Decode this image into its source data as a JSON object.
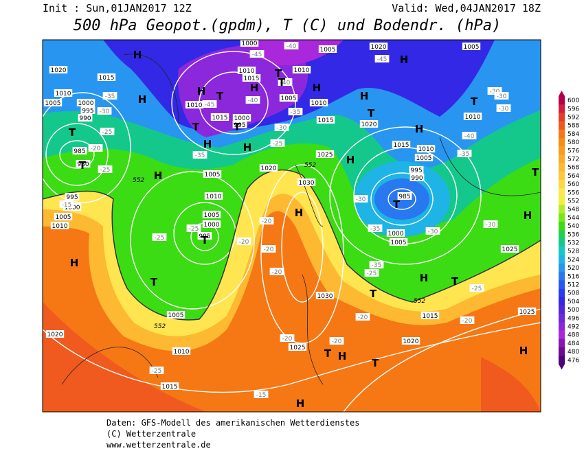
{
  "header": {
    "init": "Init : Sun,01JAN2017 12Z",
    "valid": "Valid: Wed,04JAN2017 18Z",
    "title": "500 hPa Geopot.(gpdm), T (C) und Bodendr. (hPa)"
  },
  "footer": {
    "line1": "Daten: GFS-Modell des amerikanischen Wetterdienstes",
    "line2": "(C) Wetterzentrale",
    "line3": "www.wetterzentrale.de"
  },
  "legend": {
    "values": [
      600,
      596,
      592,
      588,
      584,
      580,
      576,
      572,
      568,
      564,
      560,
      556,
      552,
      548,
      544,
      540,
      536,
      532,
      528,
      524,
      520,
      516,
      512,
      508,
      504,
      500,
      496,
      492,
      488,
      484,
      480,
      476
    ],
    "colors": [
      "#b4004b",
      "#d21e3c",
      "#e63c28",
      "#f05a1e",
      "#f57814",
      "#f88c14",
      "#fa9b1e",
      "#fcaa28",
      "#fdb932",
      "#fec83c",
      "#ffd746",
      "#ffe650",
      "#f0f03c",
      "#b4eb28",
      "#78e614",
      "#3cdc14",
      "#1ed250",
      "#14c88c",
      "#14c8c8",
      "#1eb4e6",
      "#2896f0",
      "#2878f0",
      "#285af0",
      "#283cf0",
      "#3228e6",
      "#5028dc",
      "#6e28dc",
      "#8c28dc",
      "#aa28dc",
      "#8c14b4",
      "#6e0a96",
      "#500078"
    ]
  },
  "map": {
    "isobar_labels": [
      "1020",
      "1015",
      "1010",
      "1005",
      "1000",
      "995",
      "990",
      "985",
      "980",
      "995",
      "1000",
      "1005",
      "1010",
      "1005",
      "1000",
      "995",
      "1005",
      "1010",
      "1015",
      "1020",
      "1025",
      "1030",
      "1030",
      "1025",
      "1020",
      "1015",
      "1010",
      "1005",
      "995",
      "990",
      "985",
      "1000",
      "1005",
      "1015",
      "1020",
      "1025",
      "1025",
      "1010",
      "1005",
      "1020",
      "1005",
      "1000",
      "1010",
      "1015",
      "1010",
      "1005",
      "1010",
      "1015",
      "1010",
      "1015",
      "1000",
      "995",
      "1005",
      "1010",
      "1020"
    ],
    "contour_labels": [
      "552",
      "552",
      "552",
      "552"
    ],
    "temp_labels": [
      "-35",
      "-30",
      "-25",
      "-20",
      "-25",
      "-15",
      "-25",
      "-25",
      "-20",
      "-20",
      "-20",
      "-20",
      "-20",
      "-20",
      "-25",
      "-15",
      "-20",
      "-20",
      "-25",
      "-30",
      "-35",
      "-35",
      "-30",
      "-35",
      "-40",
      "-30",
      "-30",
      "-30",
      "-45",
      "-40",
      "-45",
      "-40",
      "-40",
      "-45",
      "-35",
      "-30",
      "-25",
      "-35",
      "-30",
      "-25"
    ],
    "centers": [
      "H",
      "H",
      "H",
      "T",
      "H",
      "T",
      "T",
      "H",
      "H",
      "T",
      "H",
      "H",
      "T",
      "T",
      "T",
      "H",
      "H",
      "T",
      "T",
      "H",
      "H",
      "T",
      "T",
      "H",
      "H",
      "T",
      "H",
      "T",
      "T",
      "T",
      "H",
      "T",
      "H",
      "H",
      "T",
      "H"
    ]
  }
}
